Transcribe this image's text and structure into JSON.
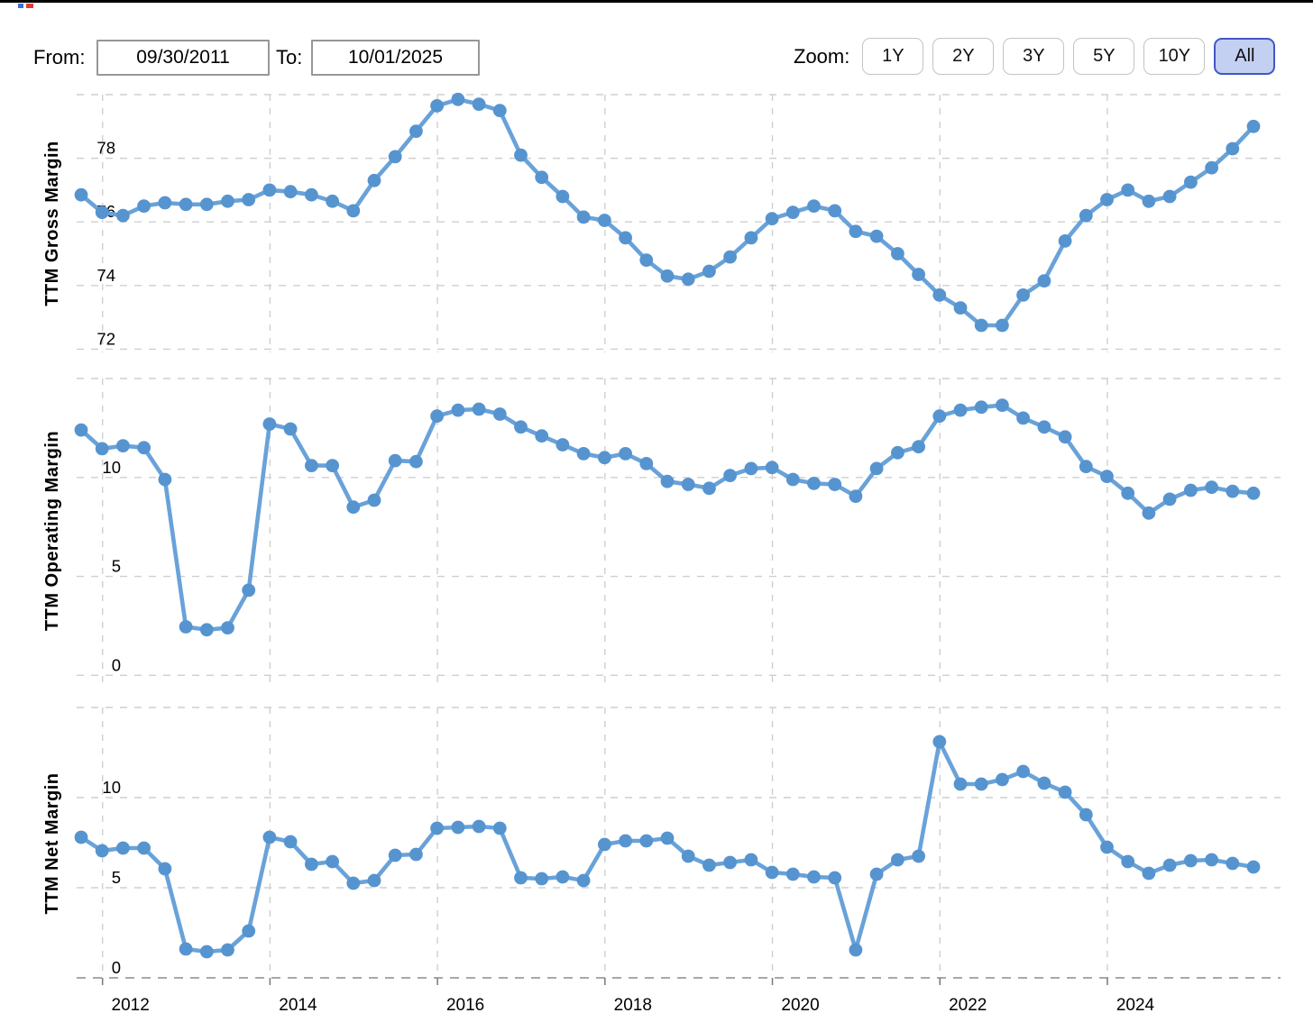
{
  "header": {
    "from_label": "From:",
    "from_value": "09/30/2011",
    "to_label": "To:",
    "to_value": "10/01/2025",
    "zoom_label": "Zoom:",
    "zoom_buttons": [
      "1Y",
      "2Y",
      "3Y",
      "5Y",
      "10Y",
      "All"
    ],
    "active_zoom": "All"
  },
  "colors": {
    "line": "#69a2d9",
    "dot": "#5694d0",
    "grid": "#cfcfcf",
    "axis": "#8c8c8c",
    "tick_text": "#000000",
    "active_zoom_bg": "#c4d0f2",
    "active_zoom_border": "#4156c6"
  },
  "x_axis": {
    "tick_labels": [
      "2012",
      "2014",
      "2016",
      "2018",
      "2020",
      "2022",
      "2024"
    ],
    "range_start": "09/30/2011",
    "range_end": "10/01/2025",
    "frequency": "quarterly"
  },
  "chart_data": [
    {
      "type": "line",
      "ylabel": "TTM Gross Margin",
      "yticks": [
        78,
        76,
        74,
        72
      ],
      "ylim": [
        71.9,
        80.0
      ],
      "values": [
        76.85,
        76.3,
        76.2,
        76.5,
        76.6,
        76.55,
        76.55,
        76.65,
        76.7,
        77.0,
        76.95,
        76.85,
        76.65,
        76.35,
        77.3,
        78.05,
        78.85,
        79.65,
        79.85,
        79.7,
        79.5,
        78.1,
        77.4,
        76.8,
        76.15,
        76.05,
        75.5,
        74.8,
        74.3,
        74.2,
        74.45,
        74.9,
        75.5,
        76.1,
        76.3,
        76.5,
        76.35,
        75.7,
        75.55,
        75.0,
        74.35,
        73.7,
        73.3,
        72.75,
        72.75,
        73.7,
        74.15,
        75.4,
        76.2,
        76.7,
        77.0,
        76.65,
        76.8,
        77.25,
        77.7,
        78.3,
        79.0
      ]
    },
    {
      "type": "line",
      "ylabel": "TTM Operating Margin",
      "yticks": [
        10,
        5,
        0
      ],
      "ylim": [
        -0.35,
        15.0
      ],
      "values": [
        12.4,
        11.45,
        11.6,
        11.5,
        9.9,
        2.45,
        2.3,
        2.4,
        4.3,
        12.7,
        12.45,
        10.6,
        10.6,
        8.5,
        8.85,
        10.85,
        10.8,
        13.1,
        13.4,
        13.45,
        13.2,
        12.55,
        12.1,
        11.65,
        11.2,
        11.0,
        11.2,
        10.7,
        9.8,
        9.65,
        9.45,
        10.1,
        10.45,
        10.5,
        9.9,
        9.7,
        9.65,
        9.05,
        10.45,
        11.25,
        11.55,
        13.1,
        13.4,
        13.55,
        13.65,
        13.0,
        12.55,
        12.05,
        10.55,
        10.05,
        9.2,
        8.2,
        8.9,
        9.35,
        9.5,
        9.3,
        9.2
      ]
    },
    {
      "type": "line",
      "ylabel": "TTM Net Margin",
      "yticks": [
        10,
        5,
        0
      ],
      "ylim": [
        0,
        15.0
      ],
      "values": [
        7.8,
        7.05,
        7.2,
        7.2,
        6.05,
        1.6,
        1.45,
        1.55,
        2.6,
        7.8,
        7.55,
        6.3,
        6.45,
        5.25,
        5.4,
        6.8,
        6.85,
        8.3,
        8.35,
        8.4,
        8.3,
        5.55,
        5.5,
        5.6,
        5.4,
        7.4,
        7.6,
        7.6,
        7.75,
        6.75,
        6.25,
        6.4,
        6.55,
        5.85,
        5.75,
        5.6,
        5.55,
        1.55,
        5.75,
        6.55,
        6.75,
        13.1,
        10.75,
        10.75,
        11.0,
        11.45,
        10.8,
        10.3,
        9.05,
        7.25,
        6.45,
        5.8,
        6.25,
        6.5,
        6.55,
        6.35,
        6.15
      ]
    }
  ]
}
